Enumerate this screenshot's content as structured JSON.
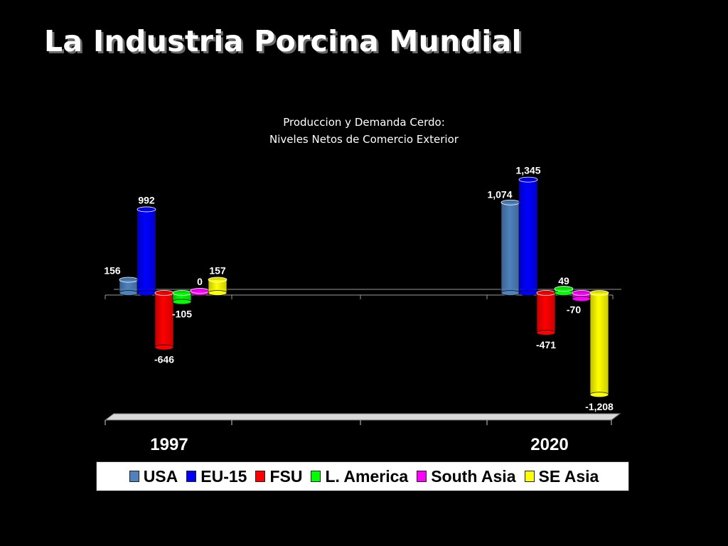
{
  "slide": {
    "title": "La Industria Porcina Mundial"
  },
  "chart_data": {
    "type": "bar",
    "title_line1": "Produccion y Demanda Cerdo:",
    "title_line2": "Niveles Netos de Comercio Exterior",
    "categories": [
      "1997",
      "2020"
    ],
    "series": [
      {
        "name": "USA",
        "color": "#4f81bd",
        "values": [
          156,
          1074
        ],
        "labels": [
          "156",
          "1,074"
        ]
      },
      {
        "name": "EU-15",
        "color": "#0000ff",
        "values": [
          992,
          1345
        ],
        "labels": [
          "992",
          "1,345"
        ]
      },
      {
        "name": "FSU",
        "color": "#ff0000",
        "values": [
          -646,
          -471
        ],
        "labels": [
          "-646",
          "-471"
        ]
      },
      {
        "name": "L. America",
        "color": "#00ff00",
        "values": [
          -105,
          49
        ],
        "labels": [
          "-105",
          "49"
        ]
      },
      {
        "name": "South Asia",
        "color": "#ff00ff",
        "values": [
          0,
          -70
        ],
        "labels": [
          "0",
          "-70"
        ]
      },
      {
        "name": "SE Asia",
        "color": "#ffff00",
        "values": [
          157,
          -1208
        ],
        "labels": [
          "157",
          "-1,208"
        ]
      }
    ],
    "ylim": [
      -1300,
      1400
    ],
    "grid": false,
    "legend_position": "bottom"
  }
}
